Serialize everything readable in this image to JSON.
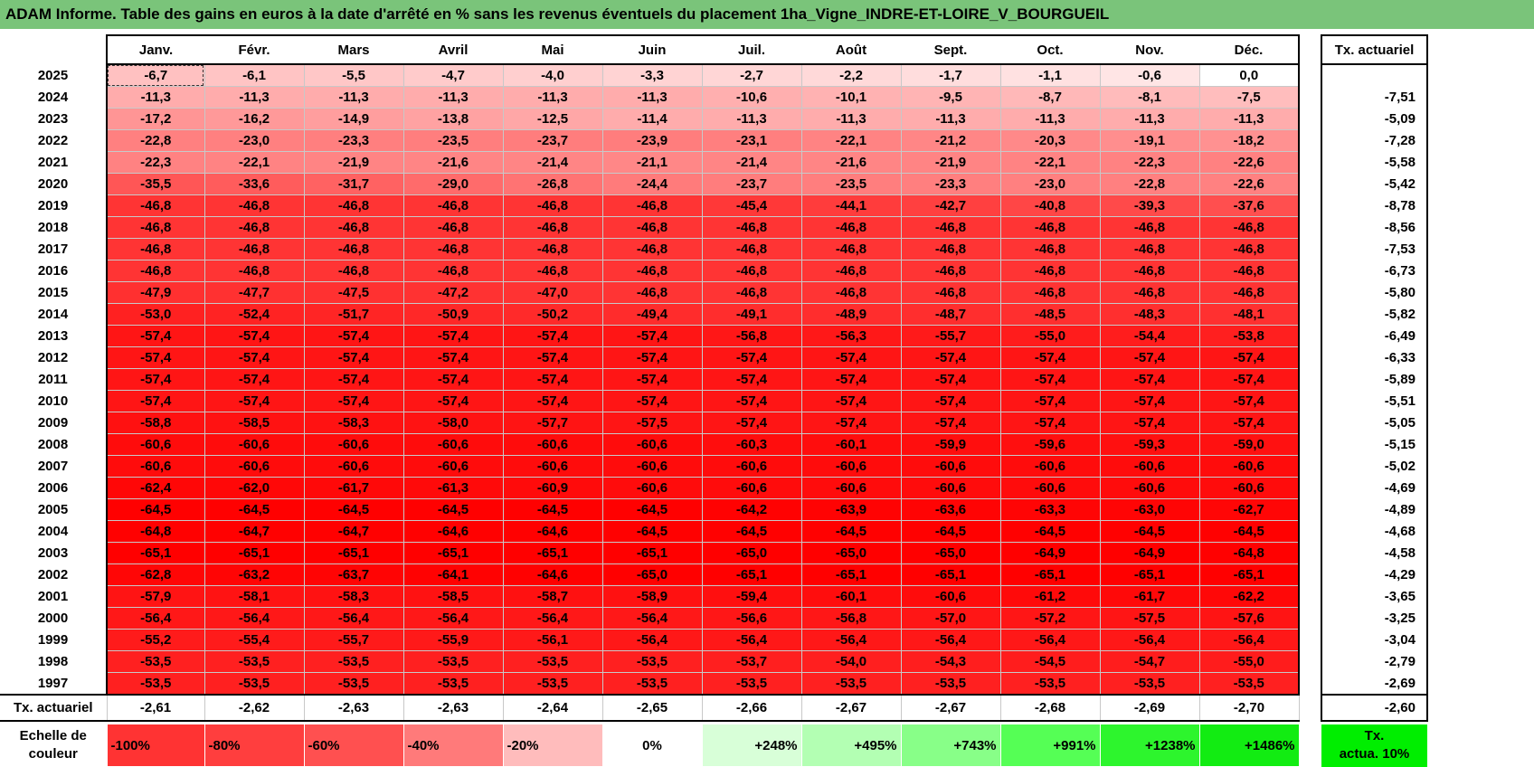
{
  "title": "ADAM Informe. Table des gains en euros à la date d'arrêté en % sans les revenus éventuels du placement 1ha_Vigne_INDRE-ET-LOIRE_V_BOURGUEIL",
  "months": [
    "Janv.",
    "Févr.",
    "Mars",
    "Avril",
    "Mai",
    "Juin",
    "Juil.",
    "Août",
    "Sept.",
    "Oct.",
    "Nov.",
    "Déc."
  ],
  "tx_header": "Tx. actuariel",
  "rows": [
    {
      "year": "2025",
      "values": [
        "-6,7",
        "-6,1",
        "-5,5",
        "-4,7",
        "-4,0",
        "-3,3",
        "-2,7",
        "-2,2",
        "-1,7",
        "-1,1",
        "-0,6",
        "0,0"
      ],
      "tx": ""
    },
    {
      "year": "2024",
      "values": [
        "-11,3",
        "-11,3",
        "-11,3",
        "-11,3",
        "-11,3",
        "-11,3",
        "-10,6",
        "-10,1",
        "-9,5",
        "-8,7",
        "-8,1",
        "-7,5"
      ],
      "tx": "-7,51"
    },
    {
      "year": "2023",
      "values": [
        "-17,2",
        "-16,2",
        "-14,9",
        "-13,8",
        "-12,5",
        "-11,4",
        "-11,3",
        "-11,3",
        "-11,3",
        "-11,3",
        "-11,3",
        "-11,3"
      ],
      "tx": "-5,09"
    },
    {
      "year": "2022",
      "values": [
        "-22,8",
        "-23,0",
        "-23,3",
        "-23,5",
        "-23,7",
        "-23,9",
        "-23,1",
        "-22,1",
        "-21,2",
        "-20,3",
        "-19,1",
        "-18,2"
      ],
      "tx": "-7,28"
    },
    {
      "year": "2021",
      "values": [
        "-22,3",
        "-22,1",
        "-21,9",
        "-21,6",
        "-21,4",
        "-21,1",
        "-21,4",
        "-21,6",
        "-21,9",
        "-22,1",
        "-22,3",
        "-22,6"
      ],
      "tx": "-5,58"
    },
    {
      "year": "2020",
      "values": [
        "-35,5",
        "-33,6",
        "-31,7",
        "-29,0",
        "-26,8",
        "-24,4",
        "-23,7",
        "-23,5",
        "-23,3",
        "-23,0",
        "-22,8",
        "-22,6"
      ],
      "tx": "-5,42"
    },
    {
      "year": "2019",
      "values": [
        "-46,8",
        "-46,8",
        "-46,8",
        "-46,8",
        "-46,8",
        "-46,8",
        "-45,4",
        "-44,1",
        "-42,7",
        "-40,8",
        "-39,3",
        "-37,6"
      ],
      "tx": "-8,78"
    },
    {
      "year": "2018",
      "values": [
        "-46,8",
        "-46,8",
        "-46,8",
        "-46,8",
        "-46,8",
        "-46,8",
        "-46,8",
        "-46,8",
        "-46,8",
        "-46,8",
        "-46,8",
        "-46,8"
      ],
      "tx": "-8,56"
    },
    {
      "year": "2017",
      "values": [
        "-46,8",
        "-46,8",
        "-46,8",
        "-46,8",
        "-46,8",
        "-46,8",
        "-46,8",
        "-46,8",
        "-46,8",
        "-46,8",
        "-46,8",
        "-46,8"
      ],
      "tx": "-7,53"
    },
    {
      "year": "2016",
      "values": [
        "-46,8",
        "-46,8",
        "-46,8",
        "-46,8",
        "-46,8",
        "-46,8",
        "-46,8",
        "-46,8",
        "-46,8",
        "-46,8",
        "-46,8",
        "-46,8"
      ],
      "tx": "-6,73"
    },
    {
      "year": "2015",
      "values": [
        "-47,9",
        "-47,7",
        "-47,5",
        "-47,2",
        "-47,0",
        "-46,8",
        "-46,8",
        "-46,8",
        "-46,8",
        "-46,8",
        "-46,8",
        "-46,8"
      ],
      "tx": "-5,80"
    },
    {
      "year": "2014",
      "values": [
        "-53,0",
        "-52,4",
        "-51,7",
        "-50,9",
        "-50,2",
        "-49,4",
        "-49,1",
        "-48,9",
        "-48,7",
        "-48,5",
        "-48,3",
        "-48,1"
      ],
      "tx": "-5,82"
    },
    {
      "year": "2013",
      "values": [
        "-57,4",
        "-57,4",
        "-57,4",
        "-57,4",
        "-57,4",
        "-57,4",
        "-56,8",
        "-56,3",
        "-55,7",
        "-55,0",
        "-54,4",
        "-53,8"
      ],
      "tx": "-6,49"
    },
    {
      "year": "2012",
      "values": [
        "-57,4",
        "-57,4",
        "-57,4",
        "-57,4",
        "-57,4",
        "-57,4",
        "-57,4",
        "-57,4",
        "-57,4",
        "-57,4",
        "-57,4",
        "-57,4"
      ],
      "tx": "-6,33"
    },
    {
      "year": "2011",
      "values": [
        "-57,4",
        "-57,4",
        "-57,4",
        "-57,4",
        "-57,4",
        "-57,4",
        "-57,4",
        "-57,4",
        "-57,4",
        "-57,4",
        "-57,4",
        "-57,4"
      ],
      "tx": "-5,89"
    },
    {
      "year": "2010",
      "values": [
        "-57,4",
        "-57,4",
        "-57,4",
        "-57,4",
        "-57,4",
        "-57,4",
        "-57,4",
        "-57,4",
        "-57,4",
        "-57,4",
        "-57,4",
        "-57,4"
      ],
      "tx": "-5,51"
    },
    {
      "year": "2009",
      "values": [
        "-58,8",
        "-58,5",
        "-58,3",
        "-58,0",
        "-57,7",
        "-57,5",
        "-57,4",
        "-57,4",
        "-57,4",
        "-57,4",
        "-57,4",
        "-57,4"
      ],
      "tx": "-5,05"
    },
    {
      "year": "2008",
      "values": [
        "-60,6",
        "-60,6",
        "-60,6",
        "-60,6",
        "-60,6",
        "-60,6",
        "-60,3",
        "-60,1",
        "-59,9",
        "-59,6",
        "-59,3",
        "-59,0"
      ],
      "tx": "-5,15"
    },
    {
      "year": "2007",
      "values": [
        "-60,6",
        "-60,6",
        "-60,6",
        "-60,6",
        "-60,6",
        "-60,6",
        "-60,6",
        "-60,6",
        "-60,6",
        "-60,6",
        "-60,6",
        "-60,6"
      ],
      "tx": "-5,02"
    },
    {
      "year": "2006",
      "values": [
        "-62,4",
        "-62,0",
        "-61,7",
        "-61,3",
        "-60,9",
        "-60,6",
        "-60,6",
        "-60,6",
        "-60,6",
        "-60,6",
        "-60,6",
        "-60,6"
      ],
      "tx": "-4,69"
    },
    {
      "year": "2005",
      "values": [
        "-64,5",
        "-64,5",
        "-64,5",
        "-64,5",
        "-64,5",
        "-64,5",
        "-64,2",
        "-63,9",
        "-63,6",
        "-63,3",
        "-63,0",
        "-62,7"
      ],
      "tx": "-4,89"
    },
    {
      "year": "2004",
      "values": [
        "-64,8",
        "-64,7",
        "-64,7",
        "-64,6",
        "-64,6",
        "-64,5",
        "-64,5",
        "-64,5",
        "-64,5",
        "-64,5",
        "-64,5",
        "-64,5"
      ],
      "tx": "-4,68"
    },
    {
      "year": "2003",
      "values": [
        "-65,1",
        "-65,1",
        "-65,1",
        "-65,1",
        "-65,1",
        "-65,1",
        "-65,0",
        "-65,0",
        "-65,0",
        "-64,9",
        "-64,9",
        "-64,8"
      ],
      "tx": "-4,58"
    },
    {
      "year": "2002",
      "values": [
        "-62,8",
        "-63,2",
        "-63,7",
        "-64,1",
        "-64,6",
        "-65,0",
        "-65,1",
        "-65,1",
        "-65,1",
        "-65,1",
        "-65,1",
        "-65,1"
      ],
      "tx": "-4,29"
    },
    {
      "year": "2001",
      "values": [
        "-57,9",
        "-58,1",
        "-58,3",
        "-58,5",
        "-58,7",
        "-58,9",
        "-59,4",
        "-60,1",
        "-60,6",
        "-61,2",
        "-61,7",
        "-62,2"
      ],
      "tx": "-3,65"
    },
    {
      "year": "2000",
      "values": [
        "-56,4",
        "-56,4",
        "-56,4",
        "-56,4",
        "-56,4",
        "-56,4",
        "-56,6",
        "-56,8",
        "-57,0",
        "-57,2",
        "-57,5",
        "-57,6"
      ],
      "tx": "-3,25"
    },
    {
      "year": "1999",
      "values": [
        "-55,2",
        "-55,4",
        "-55,7",
        "-55,9",
        "-56,1",
        "-56,4",
        "-56,4",
        "-56,4",
        "-56,4",
        "-56,4",
        "-56,4",
        "-56,4"
      ],
      "tx": "-3,04"
    },
    {
      "year": "1998",
      "values": [
        "-53,5",
        "-53,5",
        "-53,5",
        "-53,5",
        "-53,5",
        "-53,5",
        "-53,7",
        "-54,0",
        "-54,3",
        "-54,5",
        "-54,7",
        "-55,0"
      ],
      "tx": "-2,79"
    },
    {
      "year": "1997",
      "values": [
        "-53,5",
        "-53,5",
        "-53,5",
        "-53,5",
        "-53,5",
        "-53,5",
        "-53,5",
        "-53,5",
        "-53,5",
        "-53,5",
        "-53,5",
        "-53,5"
      ],
      "tx": "-2,69"
    }
  ],
  "summary": {
    "label": "Tx. actuariel",
    "values": [
      "-2,61",
      "-2,62",
      "-2,63",
      "-2,63",
      "-2,64",
      "-2,65",
      "-2,66",
      "-2,67",
      "-2,67",
      "-2,68",
      "-2,69",
      "-2,70"
    ],
    "tx": "-2,60"
  },
  "scale": {
    "label_line1": "Echelle de",
    "label_line2": "couleur",
    "items": [
      {
        "text": "-100%",
        "color": "#ff3333",
        "align": "l"
      },
      {
        "text": "-80%",
        "color": "#ff3e3e",
        "align": "l"
      },
      {
        "text": "-60%",
        "color": "#ff5050",
        "align": "l"
      },
      {
        "text": "-40%",
        "color": "#ff7a7a",
        "align": "l"
      },
      {
        "text": "-20%",
        "color": "#ffbcbc",
        "align": "l"
      },
      {
        "text": "0%",
        "color": "#ffffff",
        "align": "c"
      },
      {
        "text": "+248%",
        "color": "#d8ffd8",
        "align": "r"
      },
      {
        "text": "+495%",
        "color": "#b3ffb3",
        "align": "r"
      },
      {
        "text": "+743%",
        "color": "#88ff88",
        "align": "r"
      },
      {
        "text": "+991%",
        "color": "#55ff55",
        "align": "r"
      },
      {
        "text": "+1238%",
        "color": "#2df52d",
        "align": "r"
      },
      {
        "text": "+1486%",
        "color": "#12ec12",
        "align": "r"
      }
    ],
    "tx_line1": "Tx.",
    "tx_line2": "actua. 10%"
  }
}
